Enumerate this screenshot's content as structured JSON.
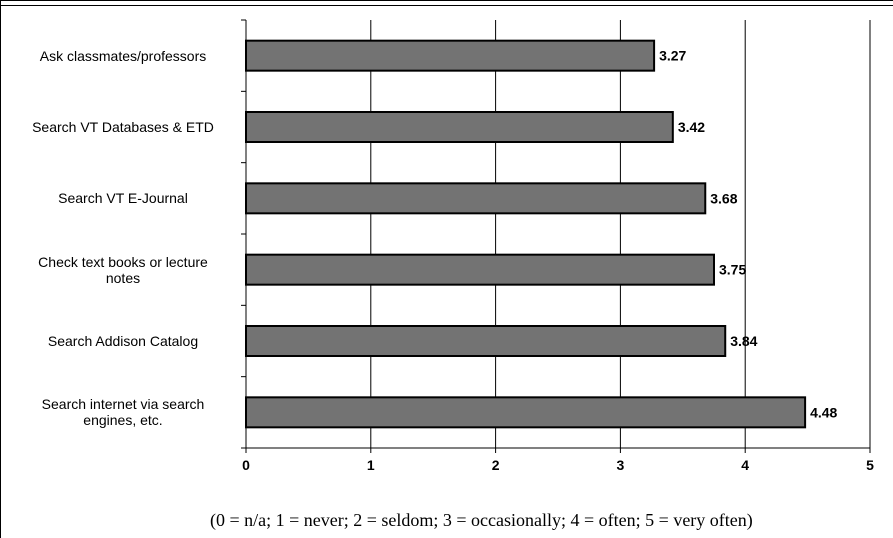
{
  "chart_data": {
    "type": "bar",
    "orientation": "horizontal",
    "categories": [
      "Ask classmates/professors",
      "Search VT Databases & ETD",
      "Search VT E-Journal",
      "Check text books or lecture notes",
      "Search Addison Catalog",
      "Search internet via search engines, etc."
    ],
    "category_display": [
      "Ask classmates/professors",
      "Search VT Databases & ETD",
      "Search VT E-Journal",
      "Check text books or lecture\nnotes",
      "Search Addison Catalog",
      "Search internet via search\nengines, etc."
    ],
    "values": [
      3.27,
      3.42,
      3.68,
      3.75,
      3.84,
      4.48
    ],
    "value_labels": [
      "3.27",
      "3.42",
      "3.68",
      "3.75",
      "3.84",
      "4.48"
    ],
    "xlim": [
      0,
      5
    ],
    "xticks": [
      "0",
      "1",
      "2",
      "3",
      "4",
      "5"
    ],
    "grid": "vertical",
    "bar_color": "#737373",
    "bar_edge_color": "#000000",
    "caption": "(0 = n/a; 1 = never; 2 = seldom; 3 = occasionally; 4 = often; 5 = very often)"
  }
}
